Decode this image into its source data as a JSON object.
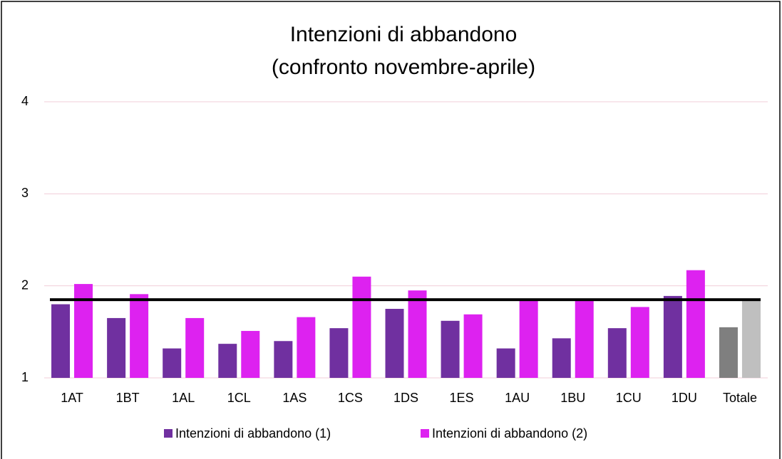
{
  "chart_data": {
    "type": "bar",
    "title": [
      "Intenzioni di abbandono",
      "(confronto novembre-aprile)"
    ],
    "categories": [
      "1AT",
      "1BT",
      "1AL",
      "1CL",
      "1AS",
      "1CS",
      "1DS",
      "1ES",
      "1AU",
      "1BU",
      "1CU",
      "1DU",
      "Totale"
    ],
    "series": [
      {
        "name": "Intenzioni di abbandono (1)",
        "color": "#7030a0",
        "colors": [
          null,
          null,
          null,
          null,
          null,
          null,
          null,
          null,
          null,
          null,
          null,
          null,
          "#7f7f7f"
        ],
        "values": [
          1.8,
          1.65,
          1.32,
          1.37,
          1.4,
          1.54,
          1.75,
          1.62,
          1.32,
          1.43,
          1.54,
          1.89,
          1.55
        ]
      },
      {
        "name": "Intenzioni di abbandono (2)",
        "color": "#dd22f0",
        "colors": [
          null,
          null,
          null,
          null,
          null,
          null,
          null,
          null,
          null,
          null,
          null,
          null,
          "#bfbfbf"
        ],
        "values": [
          2.02,
          1.91,
          1.65,
          1.51,
          1.66,
          2.1,
          1.95,
          1.69,
          1.84,
          1.84,
          1.77,
          2.17,
          1.84
        ]
      }
    ],
    "reference_line": {
      "value": 1.85,
      "color": "#000000"
    },
    "ylim": [
      1,
      4
    ],
    "yticks": [
      1,
      2,
      3,
      4
    ],
    "grid": true,
    "grid_color": "#f0cdd8",
    "legend": "bottom"
  }
}
